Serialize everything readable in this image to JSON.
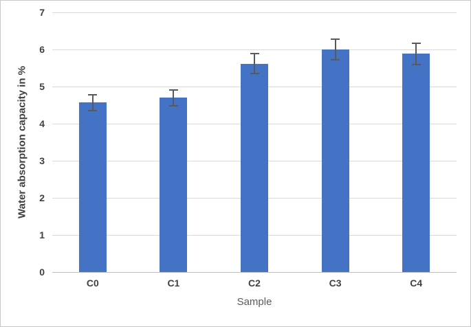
{
  "chart_data": {
    "type": "bar",
    "categories": [
      "C0",
      "C1",
      "C2",
      "C3",
      "C4"
    ],
    "values": [
      4.57,
      4.7,
      5.62,
      6.0,
      5.88
    ],
    "error_bars_plus_minus": [
      0.23,
      0.23,
      0.28,
      0.3,
      0.3
    ],
    "xlabel": "Sample",
    "ylabel": "Water absorption capacity in %",
    "ylim": [
      0,
      7
    ],
    "yticks": [
      0,
      1,
      2,
      3,
      4,
      5,
      6,
      7
    ],
    "grid": "horizontal",
    "legend": "none",
    "colors": {
      "bar": "#4472C4",
      "error_bar": "#595959",
      "gridline": "#D9D9D9",
      "axis_line": "#BFBFBF",
      "tick_label": "#404040",
      "x_axis_title": "#595959",
      "y_axis_title": "#404040",
      "figure_border": "#C8C8C8",
      "background": "#FFFFFF"
    }
  }
}
